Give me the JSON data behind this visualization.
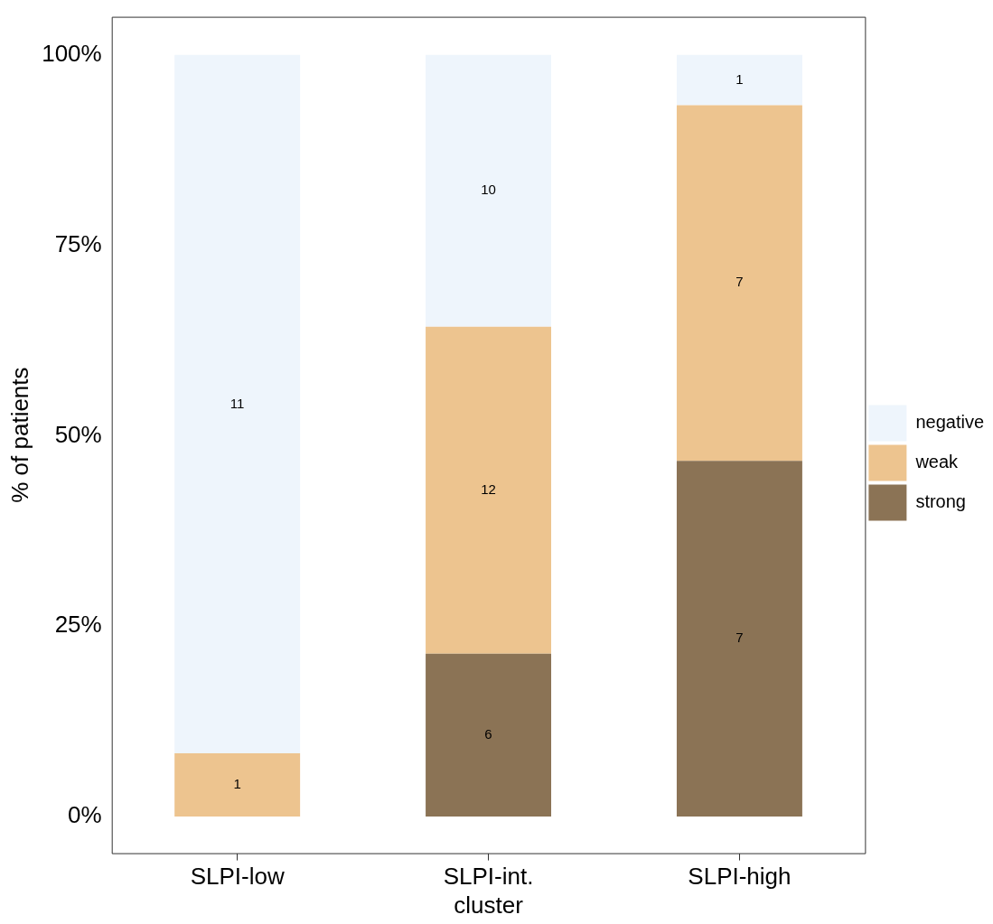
{
  "chart_data": {
    "type": "bar",
    "stacked": true,
    "ylabel": "% of patients",
    "categories": [
      "SLPI-low",
      "SLPI-int. cluster",
      "SLPI-high"
    ],
    "ylim": [
      -4.8,
      105
    ],
    "yticks": [
      {
        "value": 0,
        "label": "0%"
      },
      {
        "value": 25,
        "label": "25%"
      },
      {
        "value": 50,
        "label": "50%"
      },
      {
        "value": 75,
        "label": "75%"
      },
      {
        "value": 100,
        "label": "100%"
      }
    ],
    "grid": false,
    "legend": "right",
    "series": [
      {
        "name": "strong",
        "color": "#8b7355",
        "values": [
          0,
          21.4,
          46.7
        ]
      },
      {
        "name": "weak",
        "color": "#edc48f",
        "values": [
          8.3,
          42.9,
          46.7
        ]
      },
      {
        "name": "negative",
        "color": "#eef5fc",
        "values": [
          91.7,
          35.7,
          6.6
        ]
      }
    ],
    "annotations": [
      "6",
      "7",
      "1",
      "12",
      "7",
      "11",
      "10",
      "1"
    ]
  }
}
